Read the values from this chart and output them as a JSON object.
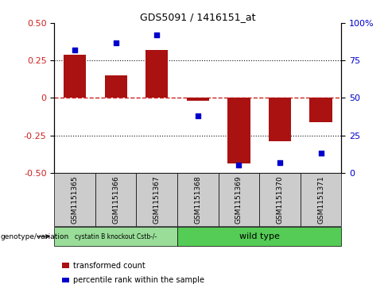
{
  "title": "GDS5091 / 1416151_at",
  "samples": [
    "GSM1151365",
    "GSM1151366",
    "GSM1151367",
    "GSM1151368",
    "GSM1151369",
    "GSM1151370",
    "GSM1151371"
  ],
  "bar_values": [
    0.29,
    0.15,
    0.32,
    -0.02,
    -0.44,
    -0.29,
    -0.16
  ],
  "dot_values_pct": [
    82,
    87,
    92,
    38,
    5,
    7,
    13
  ],
  "ylim_left": [
    -0.5,
    0.5
  ],
  "ylim_right": [
    0,
    100
  ],
  "yticks_left": [
    -0.5,
    -0.25,
    0,
    0.25,
    0.5
  ],
  "yticks_right": [
    0,
    25,
    50,
    75,
    100
  ],
  "bar_color": "#aa1111",
  "dot_color": "#0000cc",
  "zero_line_color": "#cc2222",
  "dotted_line_color": "#111111",
  "bg_color": "#ffffff",
  "plot_bg_color": "#ffffff",
  "group1_label": "cystatin B knockout Cstb-/-",
  "group2_label": "wild type",
  "group1_color": "#99dd99",
  "group2_color": "#55cc55",
  "genotype_label": "genotype/variation",
  "legend1": "transformed count",
  "legend2": "percentile rank within the sample",
  "bar_width": 0.55,
  "tick_label_size": 6.5,
  "right_yaxis_label_color": "#0000cc",
  "left_yaxis_label_color": "#cc2222",
  "tick_box_color": "#cccccc",
  "title_fontsize": 9
}
